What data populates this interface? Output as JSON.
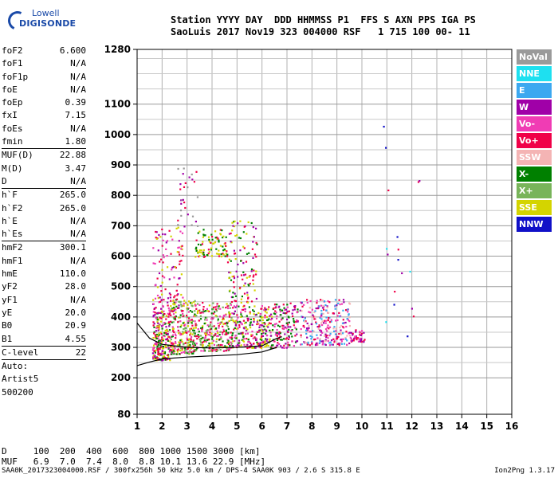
{
  "logo": {
    "line1": "Lowell",
    "line2": "DIGISONDE"
  },
  "header": {
    "line1": "Station YYYY DAY  DDD HHMMSS P1  FFS S AXN PPS IGA PS",
    "line2": "SaoLuis 2017 Nov19 323 004000 RSF   1 715 100 00- 11"
  },
  "params": [
    {
      "k": "foF2",
      "v": "6.600"
    },
    {
      "k": "foF1",
      "v": "N/A"
    },
    {
      "k": "foF1p",
      "v": "N/A"
    },
    {
      "k": "foE",
      "v": "N/A"
    },
    {
      "k": "foEp",
      "v": "0.39"
    },
    {
      "k": "fxI",
      "v": "7.15"
    },
    {
      "k": "foEs",
      "v": "N/A"
    },
    {
      "k": "fmin",
      "v": "1.80"
    },
    {
      "k": "MUF(D)",
      "v": "22.88",
      "sep": true
    },
    {
      "k": "M(D)",
      "v": "3.47"
    },
    {
      "k": "D",
      "v": "N/A"
    },
    {
      "k": "h`F",
      "v": "265.0",
      "sep": true
    },
    {
      "k": "h`F2",
      "v": "265.0"
    },
    {
      "k": "h`E",
      "v": "N/A"
    },
    {
      "k": "h`Es",
      "v": "N/A"
    },
    {
      "k": "hmF2",
      "v": "300.1",
      "sep": true
    },
    {
      "k": "hmF1",
      "v": "N/A"
    },
    {
      "k": "hmE",
      "v": "110.0"
    },
    {
      "k": "yF2",
      "v": "28.0"
    },
    {
      "k": "yF1",
      "v": "N/A"
    },
    {
      "k": "yE",
      "v": "20.0"
    },
    {
      "k": "B0",
      "v": "20.9"
    },
    {
      "k": "B1",
      "v": "4.55"
    },
    {
      "k": "C-level",
      "v": "22",
      "sep": true
    },
    {
      "k": "Auto:",
      "v": "",
      "sep": true
    },
    {
      "k": "Artist5",
      "v": ""
    },
    {
      "k": "500200",
      "v": ""
    }
  ],
  "legend": [
    {
      "label": "NoVal",
      "color": "#9a9a9a"
    },
    {
      "label": "NNE",
      "color": "#1ee0f0"
    },
    {
      "label": "E",
      "color": "#3ca8f0"
    },
    {
      "label": "W",
      "color": "#a000a8"
    },
    {
      "label": "Vo-",
      "color": "#f03cb4"
    },
    {
      "label": "Vo+",
      "color": "#f00048"
    },
    {
      "label": "SSW",
      "color": "#f4b4b4"
    },
    {
      "label": "X-",
      "color": "#008000"
    },
    {
      "label": "X+",
      "color": "#78b45a"
    },
    {
      "label": "SSE",
      "color": "#d4d400"
    },
    {
      "label": "NNW",
      "color": "#1010c8"
    }
  ],
  "bottom": {
    "d_row": "D     100  200  400  600  800 1000 1500 3000 [km]",
    "muf_row": "MUF   6.9  7.0  7.4  8.0  8.8 10.1 13.6 22.9 [MHz]"
  },
  "footer": "SAA0K_2017323004000.RSF / 300fx256h 50 kHz 5.0 km / DPS-4 SAA0K 903 / 2.6 S 315.8 E",
  "version": "Ion2Png 1.3.17",
  "chart_data": {
    "type": "scatter",
    "title": "",
    "xlabel": "",
    "ylabel": "",
    "xlim": [
      1,
      16
    ],
    "ylim": [
      80,
      1280
    ],
    "x_ticks": [
      "1",
      "2",
      "3",
      "4",
      "5",
      "6",
      "7",
      "8",
      "9",
      "10",
      "11",
      "12",
      "13",
      "14",
      "15",
      "16"
    ],
    "y_ticks": [
      {
        "v": 80,
        "label": "80"
      },
      {
        "v": 200,
        "label": "200"
      },
      {
        "v": 300,
        "label": "300"
      },
      {
        "v": 400,
        "label": "400"
      },
      {
        "v": 500,
        "label": "500"
      },
      {
        "v": 600,
        "label": "600"
      },
      {
        "v": 700,
        "label": "700"
      },
      {
        "v": 800,
        "label": "800"
      },
      {
        "v": 900,
        "label": "900"
      },
      {
        "v": 1000,
        "label": "1000"
      },
      {
        "v": 1100,
        "label": "1100"
      },
      {
        "v": 1280,
        "label": "1280"
      }
    ],
    "y_grid": [
      250,
      350,
      450,
      550,
      650,
      750,
      850,
      950,
      1050,
      1150,
      1200,
      1250
    ],
    "grid": true,
    "traces": [
      {
        "name": "profile-lower",
        "color": "#000000",
        "points": [
          [
            1.0,
            240
          ],
          [
            1.5,
            252
          ],
          [
            2.0,
            262
          ],
          [
            3.0,
            268
          ],
          [
            4.0,
            272
          ],
          [
            5.0,
            276
          ],
          [
            6.0,
            285
          ],
          [
            6.6,
            300
          ]
        ]
      },
      {
        "name": "profile-upper",
        "color": "#000000",
        "points": [
          [
            1.0,
            380
          ],
          [
            1.5,
            330
          ],
          [
            2.0,
            310
          ],
          [
            3.0,
            300
          ],
          [
            4.0,
            298
          ],
          [
            5.0,
            300
          ],
          [
            6.0,
            305
          ],
          [
            6.6,
            330
          ],
          [
            6.8,
            335
          ]
        ]
      }
    ],
    "clusters": [
      {
        "x": [
          1.6,
          2.3
        ],
        "y": [
          260,
          420
        ],
        "n": 220,
        "colors": [
          "#f00048",
          "#f03cb4",
          "#a000a8",
          "#d4d400",
          "#008000"
        ]
      },
      {
        "x": [
          2.3,
          3.3
        ],
        "y": [
          280,
          460
        ],
        "n": 260,
        "colors": [
          "#f00048",
          "#f03cb4",
          "#d4d400",
          "#008000",
          "#78b45a"
        ]
      },
      {
        "x": [
          3.3,
          4.8
        ],
        "y": [
          290,
          450
        ],
        "n": 300,
        "colors": [
          "#f00048",
          "#d4d400",
          "#008000",
          "#f03cb4",
          "#78b45a"
        ]
      },
      {
        "x": [
          4.8,
          6.4
        ],
        "y": [
          300,
          440
        ],
        "n": 260,
        "colors": [
          "#d4d400",
          "#f00048",
          "#008000",
          "#a000a8",
          "#f03cb4"
        ]
      },
      {
        "x": [
          6.4,
          7.4
        ],
        "y": [
          300,
          450
        ],
        "n": 140,
        "colors": [
          "#f00048",
          "#f03cb4",
          "#a000a8",
          "#008000"
        ]
      },
      {
        "x": [
          7.5,
          9.5
        ],
        "y": [
          310,
          460
        ],
        "n": 260,
        "colors": [
          "#f03cb4",
          "#a000a8",
          "#3ca8f0",
          "#f00048",
          "#f4b4b4"
        ]
      },
      {
        "x": [
          9.5,
          10.1
        ],
        "y": [
          320,
          360
        ],
        "n": 40,
        "colors": [
          "#f00048",
          "#f03cb4",
          "#a000a8"
        ]
      },
      {
        "x": [
          1.6,
          2.8
        ],
        "y": [
          420,
          700
        ],
        "n": 120,
        "colors": [
          "#f00048",
          "#d4d400",
          "#a000a8",
          "#f03cb4"
        ]
      },
      {
        "x": [
          3.3,
          4.6
        ],
        "y": [
          600,
          690
        ],
        "n": 90,
        "colors": [
          "#d4d400",
          "#f00048",
          "#008000"
        ]
      },
      {
        "x": [
          4.6,
          5.8
        ],
        "y": [
          450,
          720
        ],
        "n": 110,
        "colors": [
          "#d4d400",
          "#a000a8",
          "#f00048",
          "#008000"
        ]
      },
      {
        "x": [
          2.6,
          3.4
        ],
        "y": [
          700,
          900
        ],
        "n": 30,
        "colors": [
          "#a000a8",
          "#f00048",
          "#9a9a9a"
        ]
      },
      {
        "x": [
          10.8,
          12.4
        ],
        "y": [
          240,
          1100
        ],
        "n": 18,
        "colors": [
          "#f00048",
          "#a000a8",
          "#1ee0f0",
          "#1010c8",
          "#3ca8f0"
        ]
      }
    ]
  }
}
